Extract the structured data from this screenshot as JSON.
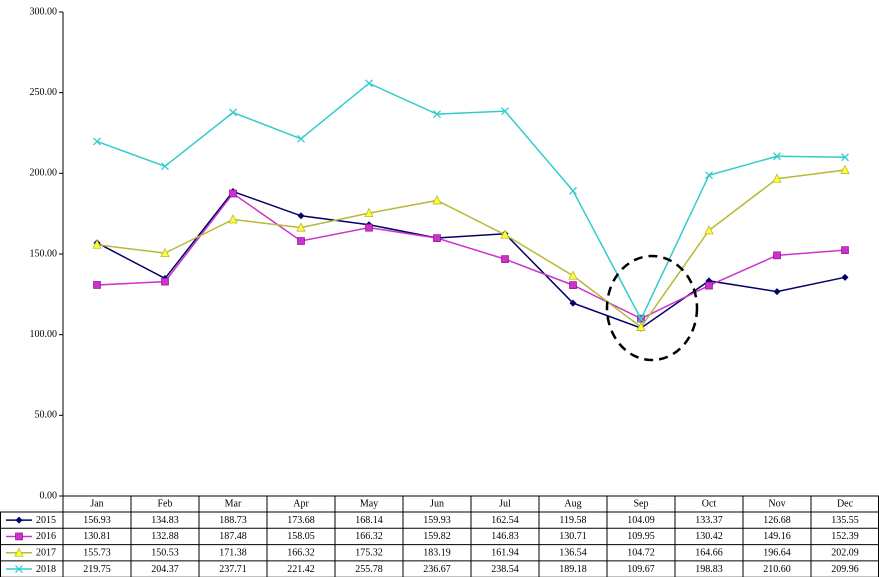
{
  "chart_data": {
    "type": "line",
    "categories": [
      "Jan",
      "Feb",
      "Mar",
      "Apr",
      "May",
      "Jun",
      "Jul",
      "Aug",
      "Sep",
      "Oct",
      "Nov",
      "Dec"
    ],
    "ylim": [
      0,
      300
    ],
    "yticks": [
      {
        "value": 0,
        "label": "0.00"
      },
      {
        "value": 50,
        "label": "50.00"
      },
      {
        "value": 100,
        "label": "100.00"
      },
      {
        "value": 150,
        "label": "150.00"
      },
      {
        "value": 200,
        "label": "200.00"
      },
      {
        "value": 250,
        "label": "250.00"
      },
      {
        "value": 300,
        "label": "300.00"
      }
    ],
    "grid": false,
    "series": [
      {
        "name": "2015",
        "color": "#000066",
        "values": [
          156.93,
          134.83,
          188.73,
          173.68,
          168.14,
          159.93,
          162.54,
          119.58,
          104.09,
          133.37,
          126.68,
          135.55
        ],
        "value_labels": [
          "156.93",
          "134.83",
          "188.73",
          "173.68",
          "168.14",
          "159.93",
          "162.54",
          "119.58",
          "104.09",
          "133.37",
          "126.68",
          "135.55"
        ]
      },
      {
        "name": "2016",
        "color": "#cc33cc",
        "values": [
          130.81,
          132.88,
          187.48,
          158.05,
          166.32,
          159.82,
          146.83,
          130.71,
          109.95,
          130.42,
          149.16,
          152.39
        ],
        "value_labels": [
          "130.81",
          "132.88",
          "187.48",
          "158.05",
          "166.32",
          "159.82",
          "146.83",
          "130.71",
          "109.95",
          "130.42",
          "149.16",
          "152.39"
        ]
      },
      {
        "name": "2017",
        "color": "#b8b838",
        "values": [
          155.73,
          150.53,
          171.38,
          166.32,
          175.32,
          183.19,
          161.94,
          136.54,
          104.72,
          164.66,
          196.64,
          202.09
        ],
        "value_labels": [
          "155.73",
          "150.53",
          "171.38",
          "166.32",
          "175.32",
          "183.19",
          "161.94",
          "136.54",
          "104.72",
          "164.66",
          "196.64",
          "202.09"
        ]
      },
      {
        "name": "2018",
        "color": "#33cccc",
        "values": [
          219.75,
          204.37,
          237.71,
          221.42,
          255.78,
          236.67,
          238.54,
          189.18,
          109.67,
          198.83,
          210.6,
          209.96
        ],
        "value_labels": [
          "219.75",
          "204.37",
          "237.71",
          "221.42",
          "255.78",
          "236.67",
          "238.54",
          "189.18",
          "109.67",
          "198.83",
          "210.60",
          "209.96"
        ]
      }
    ]
  }
}
